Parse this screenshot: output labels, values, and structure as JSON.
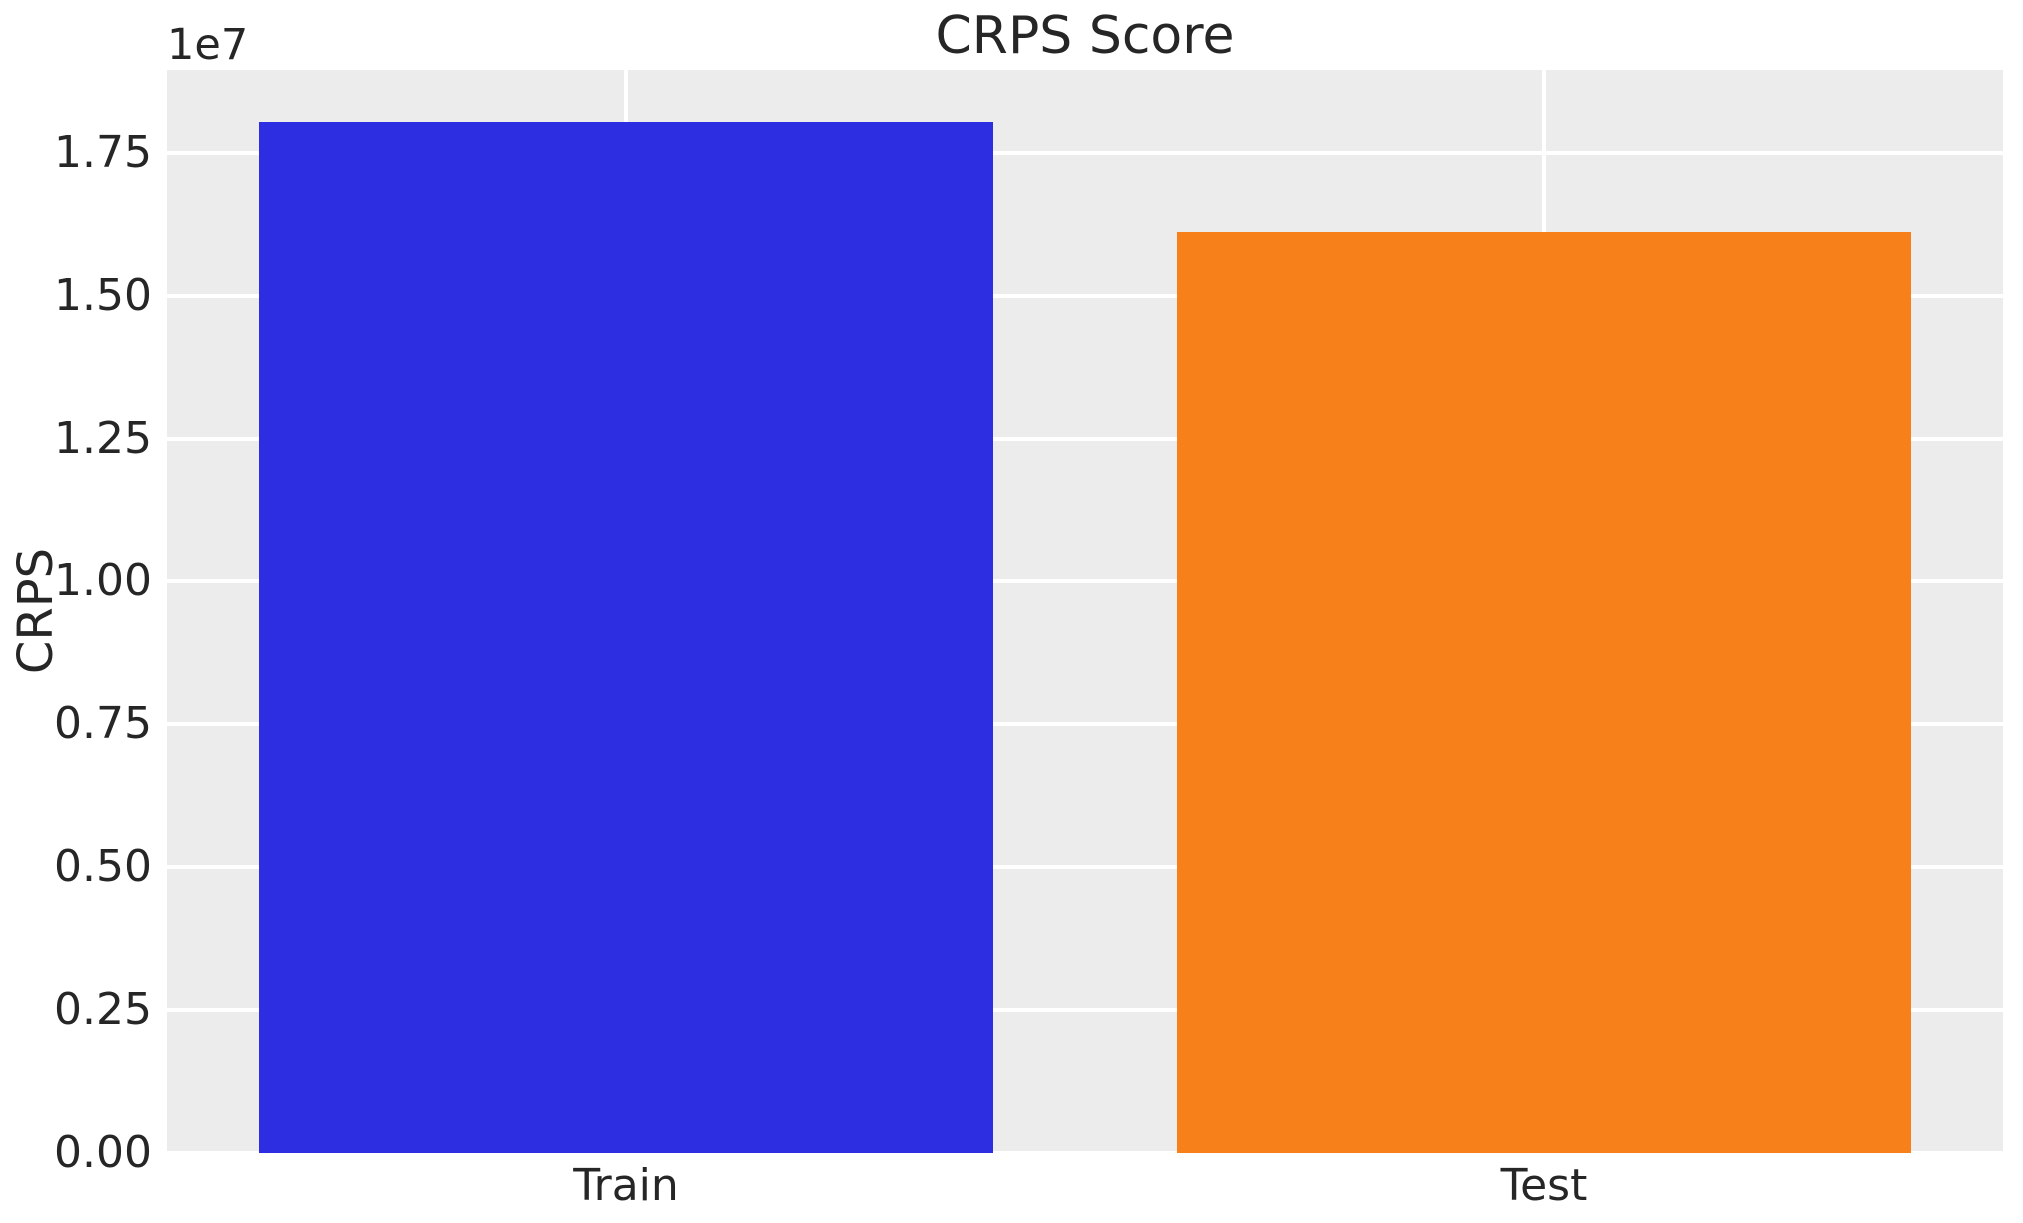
{
  "figure": {
    "title": "CRPS Score",
    "y_offset_label": "1e7",
    "ylabel": "CRPS"
  },
  "colors": {
    "figure_background": "#ffffff",
    "plot_background": "#ececec",
    "grid": "#ffffff",
    "text": "#262626"
  },
  "chart_data": {
    "type": "bar",
    "title": "CRPS Score",
    "xlabel": "",
    "ylabel": "CRPS",
    "y_offset_label": "1e7",
    "categories": [
      "Train",
      "Test"
    ],
    "values": [
      18040000,
      16120000
    ],
    "bar_colors": [
      "#2d2de1",
      "#f8801a"
    ],
    "ylim": [
      0,
      18950000
    ],
    "yticks": [
      0,
      2500000,
      5000000,
      7500000,
      10000000,
      12500000,
      15000000,
      17500000
    ],
    "ytick_labels": [
      "0.00",
      "0.25",
      "0.50",
      "0.75",
      "1.00",
      "1.25",
      "1.50",
      "1.75"
    ],
    "grid": true,
    "legend_position": "none",
    "bar_width_fraction": 0.8
  }
}
